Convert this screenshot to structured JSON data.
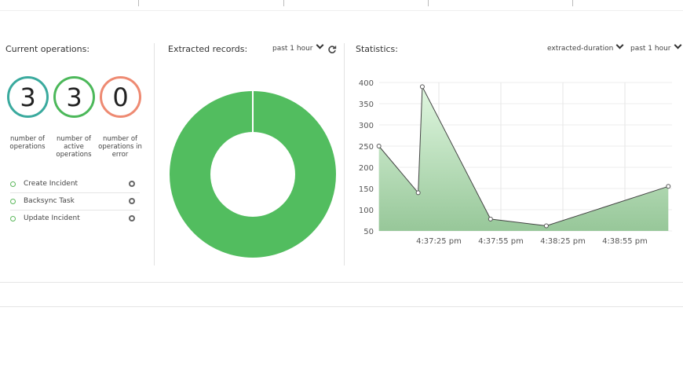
{
  "operations": {
    "title": "Current operations:",
    "counters": [
      {
        "value": "3",
        "label": "number of operations",
        "color": "#3aaa9e"
      },
      {
        "value": "3",
        "label": "number of active operations",
        "color": "#4cb85a"
      },
      {
        "value": "0",
        "label": "number of operations in error",
        "color": "#ee8a72"
      }
    ],
    "items": [
      {
        "label": "Create Incident"
      },
      {
        "label": "Backsync Task"
      },
      {
        "label": "Update Incident"
      }
    ]
  },
  "extracted": {
    "title": "Extracted records:",
    "period": "past 1 hour",
    "color": "#52bd5f"
  },
  "statistics": {
    "title": "Statistics:",
    "metric": "extracted-duration",
    "period": "past 1 hour"
  },
  "chart_data": {
    "type": "area",
    "ylim": [
      50,
      400
    ],
    "yticks": [
      50,
      100,
      150,
      200,
      250,
      300,
      350,
      400
    ],
    "xticks": [
      "4:37:25 pm",
      "4:37:55 pm",
      "4:38:25 pm",
      "4:38:55 pm"
    ],
    "x": [
      "4:36:56 pm",
      "4:37:15 pm",
      "4:37:17 pm",
      "4:37:50 pm",
      "4:38:17 pm",
      "4:39:16 pm"
    ],
    "values": [
      250,
      140,
      390,
      78,
      62,
      155
    ],
    "grid": true,
    "color": "#8cc88f"
  }
}
